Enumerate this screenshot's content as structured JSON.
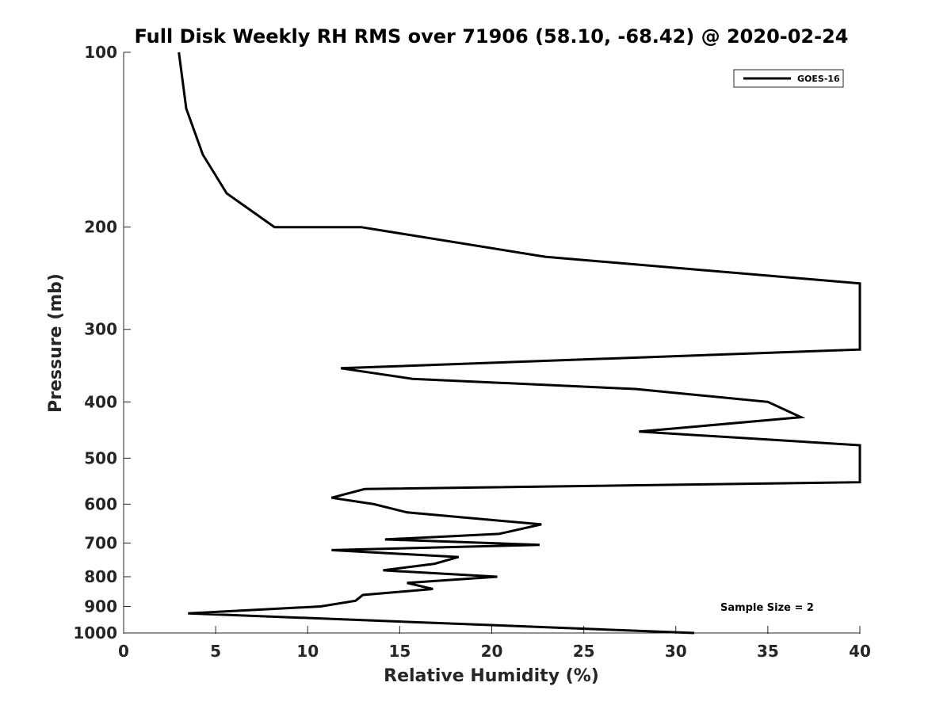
{
  "chart_data": {
    "type": "line",
    "title": "Full Disk Weekly RH RMS over 71906 (58.10, -68.42) @ 2020-02-24",
    "xlabel": "Relative Humidity (%)",
    "ylabel": "Pressure (mb)",
    "xlim": [
      0,
      40
    ],
    "ylim": [
      100,
      1000
    ],
    "yscale": "log",
    "y_reversed": true,
    "grid": false,
    "xticks": [
      "0",
      "5",
      "10",
      "15",
      "20",
      "25",
      "30",
      "35",
      "40"
    ],
    "yticks": [
      "100",
      "200",
      "300",
      "400",
      "500",
      "600",
      "700",
      "800",
      "900",
      "1000"
    ],
    "legend_position": "top-right",
    "series": [
      {
        "name": "GOES-16",
        "color": "#000000",
        "points": [
          [
            3.0,
            100
          ],
          [
            3.4,
            125
          ],
          [
            4.3,
            150
          ],
          [
            5.6,
            175
          ],
          [
            8.2,
            200
          ],
          [
            12.9,
            200
          ],
          [
            22.9,
            225
          ],
          [
            40.0,
            250
          ],
          [
            40.0,
            325
          ],
          [
            11.8,
            350
          ],
          [
            15.7,
            365
          ],
          [
            27.8,
            380
          ],
          [
            35.0,
            400
          ],
          [
            36.8,
            425
          ],
          [
            28.0,
            450
          ],
          [
            40.0,
            475
          ],
          [
            40.0,
            550
          ],
          [
            13.1,
            565
          ],
          [
            11.3,
            585
          ],
          [
            13.6,
            600
          ],
          [
            15.4,
            620
          ],
          [
            22.7,
            650
          ],
          [
            20.4,
            675
          ],
          [
            14.2,
            690
          ],
          [
            22.6,
            705
          ],
          [
            11.3,
            720
          ],
          [
            18.2,
            740
          ],
          [
            16.9,
            760
          ],
          [
            14.1,
            780
          ],
          [
            20.3,
            800
          ],
          [
            15.4,
            820
          ],
          [
            16.8,
            840
          ],
          [
            13.0,
            860
          ],
          [
            12.6,
            880
          ],
          [
            10.7,
            900
          ],
          [
            3.5,
            925
          ],
          [
            31.0,
            1000
          ]
        ]
      }
    ],
    "annotations": [
      "Sample Size = 2"
    ]
  }
}
